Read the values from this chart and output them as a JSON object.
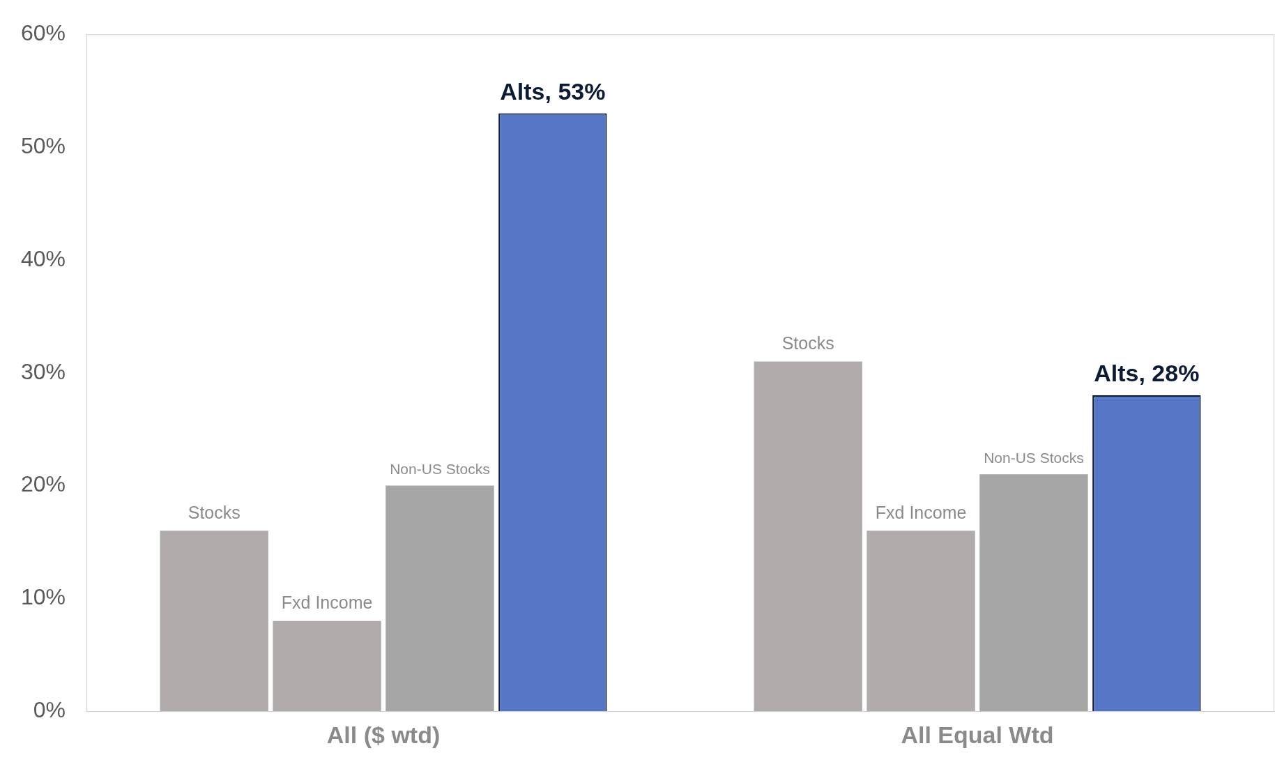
{
  "chart_data": {
    "type": "bar",
    "categories": [
      "All ($ wtd)",
      "All Equal Wtd"
    ],
    "series": [
      {
        "name": "Stocks",
        "color": "#afacab",
        "values": [
          16,
          31
        ]
      },
      {
        "name": "Fxd Income",
        "color": "#afacab",
        "values": [
          8,
          16
        ]
      },
      {
        "name": "Non-US Stocks",
        "color": "#a6a6a6",
        "values": [
          20,
          21
        ]
      },
      {
        "color": "#5676c6",
        "values": [
          53,
          28
        ],
        "value_labels": [
          "Alts, 53%",
          "Alts, 28%"
        ]
      }
    ],
    "ylim": [
      0,
      60
    ],
    "yticks": [
      {
        "value": 0,
        "label": "0%"
      },
      {
        "value": 10,
        "label": "10%"
      },
      {
        "value": 20,
        "label": "20%"
      },
      {
        "value": 30,
        "label": "30%"
      },
      {
        "value": 40,
        "label": "40%"
      },
      {
        "value": 50,
        "label": "50%"
      },
      {
        "value": 60,
        "label": "60%"
      }
    ],
    "grid": false,
    "legend": false
  }
}
